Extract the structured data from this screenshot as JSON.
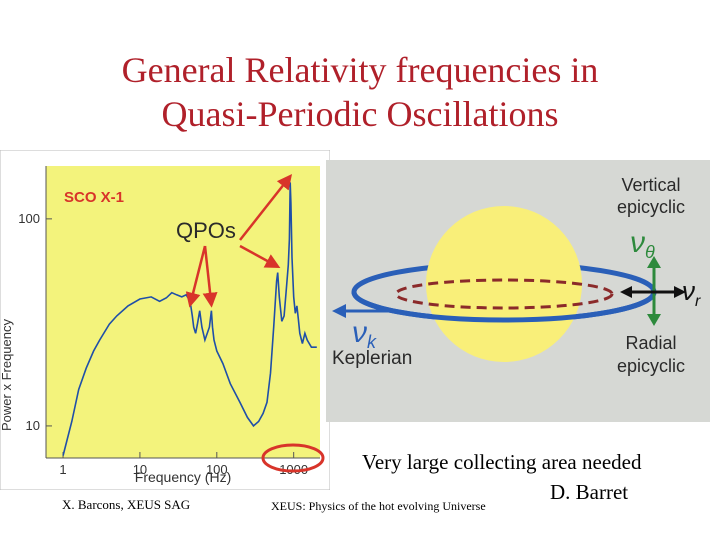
{
  "title": {
    "line1": "General Relativity frequencies in",
    "line2": "Quasi-Periodic Oscillations"
  },
  "chart_data": {
    "type": "line",
    "title": "SCO X-1",
    "xlabel": "Frequency (Hz)",
    "ylabel": "Power x Frequency",
    "x_scale": "log",
    "y_scale": "log",
    "xlim": [
      0.6,
      2200
    ],
    "ylim": [
      7,
      180
    ],
    "x_ticks": [
      1,
      10,
      100,
      1000
    ],
    "x_tick_labels": [
      "1",
      "10",
      "100",
      "1000"
    ],
    "y_ticks": [
      10,
      100
    ],
    "y_tick_labels": [
      "10",
      "100"
    ],
    "annotation": "QPOs",
    "highlighted_tick": "1000",
    "background": "#f3f37c",
    "line_color": "#1f4fa8",
    "annotation_color": "#d8342a",
    "series": [
      {
        "values": [
          [
            1.0,
            7.2
          ],
          [
            1.3,
            10.5
          ],
          [
            1.6,
            15
          ],
          [
            2.0,
            19
          ],
          [
            2.5,
            23
          ],
          [
            3.0,
            26
          ],
          [
            4.0,
            31
          ],
          [
            5.0,
            34
          ],
          [
            7.0,
            38
          ],
          [
            10,
            41
          ],
          [
            14,
            42
          ],
          [
            18,
            40
          ],
          [
            22,
            41.5
          ],
          [
            26,
            44
          ],
          [
            30,
            43
          ],
          [
            35,
            42
          ],
          [
            40,
            43
          ],
          [
            45,
            40
          ],
          [
            48,
            34
          ],
          [
            50,
            30
          ],
          [
            53,
            28
          ],
          [
            56,
            31
          ],
          [
            60,
            36
          ],
          [
            64,
            30
          ],
          [
            70,
            26
          ],
          [
            80,
            30
          ],
          [
            85,
            36
          ],
          [
            88,
            30
          ],
          [
            92,
            26
          ],
          [
            100,
            23
          ],
          [
            120,
            20
          ],
          [
            150,
            16
          ],
          [
            200,
            13
          ],
          [
            250,
            11
          ],
          [
            300,
            10
          ],
          [
            350,
            10.5
          ],
          [
            400,
            11.5
          ],
          [
            450,
            13
          ],
          [
            500,
            18
          ],
          [
            550,
            30
          ],
          [
            600,
            50
          ],
          [
            620,
            55
          ],
          [
            650,
            42
          ],
          [
            700,
            32
          ],
          [
            750,
            34
          ],
          [
            800,
            45
          ],
          [
            850,
            60
          ],
          [
            880,
            80
          ],
          [
            900,
            150
          ],
          [
            920,
            120
          ],
          [
            950,
            65
          ],
          [
            1000,
            42
          ],
          [
            1050,
            35
          ],
          [
            1100,
            38
          ],
          [
            1150,
            33
          ],
          [
            1200,
            28
          ],
          [
            1300,
            25
          ],
          [
            1400,
            28
          ],
          [
            1500,
            26
          ],
          [
            1700,
            24
          ],
          [
            2000,
            24
          ]
        ]
      }
    ],
    "qpo_markers": [
      [
        45,
        36
      ],
      [
        85,
        36
      ],
      [
        620,
        55
      ],
      [
        900,
        150
      ]
    ]
  },
  "diagram": {
    "background": "#d6d8d4",
    "star_color": "#f9ef79",
    "vertical_label_line1": "Vertical",
    "vertical_label_line2": "epicyclic",
    "vertical_symbol": "ν",
    "vertical_subscript": "θ",
    "radial_symbol": "ν",
    "radial_subscript": "r",
    "keplerian_symbol": "ν",
    "keplerian_subscript": "k",
    "keplerian_label": "Keplerian",
    "radial_label_line1": "Radial",
    "radial_label_line2": "epicyclic"
  },
  "notes": {
    "line1": "Very large collecting area needed",
    "line2": "D. Barret"
  },
  "footer": {
    "left": "X. Barcons, XEUS SAG",
    "center": "XEUS: Physics of the hot evolving Universe"
  }
}
